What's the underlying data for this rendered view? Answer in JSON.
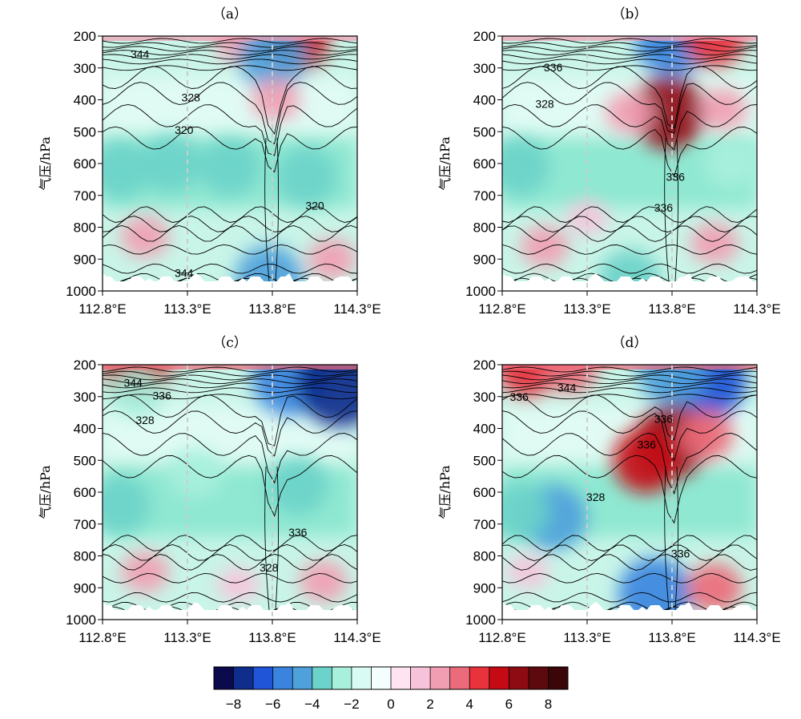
{
  "chart_data": [
    {
      "type": "heatmap",
      "panel_title": "（a）",
      "ylabel": "气压/hPa",
      "x_ticks": [
        "112.8°E",
        "113.3°E",
        "113.8°E",
        "114.3°E"
      ],
      "x_values": [
        112.8,
        113.3,
        113.8,
        114.3
      ],
      "y_ticks": [
        "200",
        "300",
        "400",
        "500",
        "600",
        "700",
        "800",
        "900",
        "1000"
      ],
      "y_values": [
        200,
        300,
        400,
        500,
        600,
        700,
        800,
        900,
        1000
      ],
      "xlim": [
        112.8,
        114.3
      ],
      "ylim": [
        1000,
        200
      ],
      "dashed_lines_x": [
        113.3,
        113.8
      ],
      "contour_labels": [
        {
          "text": "344",
          "lon": 113.02,
          "p": 256
        },
        {
          "text": "328",
          "lon": 113.32,
          "p": 392
        },
        {
          "text": "320",
          "lon": 113.28,
          "p": 494
        },
        {
          "text": "320",
          "lon": 114.05,
          "p": 732
        },
        {
          "text": "344",
          "lon": 113.28,
          "p": 944
        }
      ],
      "shading_blobs": [
        {
          "lon": 113.93,
          "p": 210,
          "value": 5
        },
        {
          "lon": 113.6,
          "p": 215,
          "value": 2
        },
        {
          "lon": 113.8,
          "p": 265,
          "value": -5
        },
        {
          "lon": 113.82,
          "p": 400,
          "value": 2
        },
        {
          "lon": 112.9,
          "p": 620,
          "value": -4
        },
        {
          "lon": 113.2,
          "p": 600,
          "value": -4
        },
        {
          "lon": 113.55,
          "p": 610,
          "value": -4
        },
        {
          "lon": 114.0,
          "p": 640,
          "value": -4
        },
        {
          "lon": 113.05,
          "p": 830,
          "value": 2
        },
        {
          "lon": 114.15,
          "p": 900,
          "value": 2
        },
        {
          "lon": 113.78,
          "p": 960,
          "value": -5
        }
      ]
    },
    {
      "type": "heatmap",
      "panel_title": "（b）",
      "ylabel": "气压/hPa",
      "x_ticks": [
        "112.8°E",
        "113.3°E",
        "113.8°E",
        "114.3°E"
      ],
      "x_values": [
        112.8,
        113.3,
        113.8,
        114.3
      ],
      "y_ticks": [
        "200",
        "300",
        "400",
        "500",
        "600",
        "700",
        "800",
        "900",
        "1000"
      ],
      "y_values": [
        200,
        300,
        400,
        500,
        600,
        700,
        800,
        900,
        1000
      ],
      "xlim": [
        112.8,
        114.3
      ],
      "ylim": [
        1000,
        200
      ],
      "dashed_lines_x": [
        113.3,
        113.8
      ],
      "contour_labels": [
        {
          "text": "336",
          "lon": 113.1,
          "p": 298
        },
        {
          "text": "328",
          "lon": 113.05,
          "p": 412
        },
        {
          "text": "336",
          "lon": 113.82,
          "p": 642
        },
        {
          "text": "336",
          "lon": 113.75,
          "p": 738
        }
      ],
      "shading_blobs": [
        {
          "lon": 113.8,
          "p": 210,
          "value": -6
        },
        {
          "lon": 114.05,
          "p": 205,
          "value": 4
        },
        {
          "lon": 113.78,
          "p": 440,
          "value": 6
        },
        {
          "lon": 113.55,
          "p": 440,
          "value": 2
        },
        {
          "lon": 114.1,
          "p": 430,
          "value": 2
        },
        {
          "lon": 112.9,
          "p": 610,
          "value": -4
        },
        {
          "lon": 114.15,
          "p": 600,
          "value": -3
        },
        {
          "lon": 113.3,
          "p": 770,
          "value": 1
        },
        {
          "lon": 113.05,
          "p": 860,
          "value": 2
        },
        {
          "lon": 114.05,
          "p": 850,
          "value": 2
        },
        {
          "lon": 113.55,
          "p": 960,
          "value": -4
        }
      ]
    },
    {
      "type": "heatmap",
      "panel_title": "（c）",
      "ylabel": "气压/hPa",
      "x_ticks": [
        "112.8°E",
        "113.3°E",
        "113.8°E",
        "114.3°E"
      ],
      "x_values": [
        112.8,
        113.3,
        113.8,
        114.3
      ],
      "y_ticks": [
        "200",
        "300",
        "400",
        "500",
        "600",
        "700",
        "800",
        "900",
        "1000"
      ],
      "y_values": [
        200,
        300,
        400,
        500,
        600,
        700,
        800,
        900,
        1000
      ],
      "xlim": [
        112.8,
        114.3
      ],
      "ylim": [
        1000,
        200
      ],
      "dashed_lines_x": [
        113.3,
        113.8
      ],
      "contour_labels": [
        {
          "text": "344",
          "lon": 112.98,
          "p": 257
        },
        {
          "text": "336",
          "lon": 113.15,
          "p": 297
        },
        {
          "text": "328",
          "lon": 113.05,
          "p": 374
        },
        {
          "text": "336",
          "lon": 113.95,
          "p": 726
        },
        {
          "text": "328",
          "lon": 113.78,
          "p": 836
        }
      ],
      "shading_blobs": [
        {
          "lon": 113.0,
          "p": 210,
          "value": 5
        },
        {
          "lon": 113.9,
          "p": 245,
          "value": -6
        },
        {
          "lon": 114.2,
          "p": 255,
          "value": -8
        },
        {
          "lon": 113.0,
          "p": 290,
          "value": -3
        },
        {
          "lon": 112.9,
          "p": 640,
          "value": -4
        },
        {
          "lon": 113.35,
          "p": 540,
          "value": -3
        },
        {
          "lon": 113.95,
          "p": 580,
          "value": -4
        },
        {
          "lon": 113.05,
          "p": 850,
          "value": 2
        },
        {
          "lon": 114.1,
          "p": 880,
          "value": 2
        },
        {
          "lon": 113.6,
          "p": 890,
          "value": 1
        }
      ]
    },
    {
      "type": "heatmap",
      "panel_title": "（d）",
      "ylabel": "气压/hPa",
      "x_ticks": [
        "112.8°E",
        "113.3°E",
        "113.8°E",
        "114.3°E"
      ],
      "x_values": [
        112.8,
        113.3,
        113.8,
        114.3
      ],
      "y_ticks": [
        "200",
        "300",
        "400",
        "500",
        "600",
        "700",
        "800",
        "900",
        "1000"
      ],
      "y_values": [
        200,
        300,
        400,
        500,
        600,
        700,
        800,
        900,
        1000
      ],
      "xlim": [
        112.8,
        114.3
      ],
      "ylim": [
        1000,
        200
      ],
      "dashed_lines_x": [
        113.3,
        113.8
      ],
      "contour_labels": [
        {
          "text": "336",
          "lon": 112.9,
          "p": 300
        },
        {
          "text": "344",
          "lon": 113.18,
          "p": 272
        },
        {
          "text": "336",
          "lon": 113.75,
          "p": 370
        },
        {
          "text": "336",
          "lon": 113.65,
          "p": 450
        },
        {
          "text": "328",
          "lon": 113.35,
          "p": 615
        },
        {
          "text": "336",
          "lon": 113.85,
          "p": 793
        }
      ],
      "shading_blobs": [
        {
          "lon": 112.95,
          "p": 210,
          "value": 4
        },
        {
          "lon": 113.2,
          "p": 210,
          "value": 3
        },
        {
          "lon": 114.0,
          "p": 245,
          "value": -7
        },
        {
          "lon": 113.8,
          "p": 225,
          "value": -5
        },
        {
          "lon": 113.8,
          "p": 440,
          "value": 6
        },
        {
          "lon": 113.65,
          "p": 500,
          "value": 5
        },
        {
          "lon": 114.0,
          "p": 420,
          "value": 3
        },
        {
          "lon": 113.1,
          "p": 680,
          "value": -5
        },
        {
          "lon": 112.9,
          "p": 660,
          "value": -4
        },
        {
          "lon": 113.7,
          "p": 920,
          "value": -6
        },
        {
          "lon": 114.05,
          "p": 900,
          "value": 3
        },
        {
          "lon": 112.95,
          "p": 850,
          "value": 1
        }
      ]
    }
  ],
  "colorbar": {
    "colors": [
      "#0a0a4d",
      "#0e2d8c",
      "#1f55d6",
      "#3a84e0",
      "#4fa1db",
      "#6bd3c9",
      "#a8f0dc",
      "#d8fbf3",
      "#f4fefd",
      "#fde4f0",
      "#f7c3da",
      "#f19eb2",
      "#ec6b7a",
      "#e8323c",
      "#c40a14",
      "#8f0b14",
      "#5c0a0d",
      "#3a0607"
    ],
    "tick_labels": [
      "−8",
      "−6",
      "−4",
      "−2",
      "0",
      "2",
      "4",
      "6",
      "8"
    ],
    "tick_values": [
      -8,
      -6,
      -4,
      -2,
      0,
      2,
      4,
      6,
      8
    ],
    "range": [
      -9,
      9
    ]
  }
}
